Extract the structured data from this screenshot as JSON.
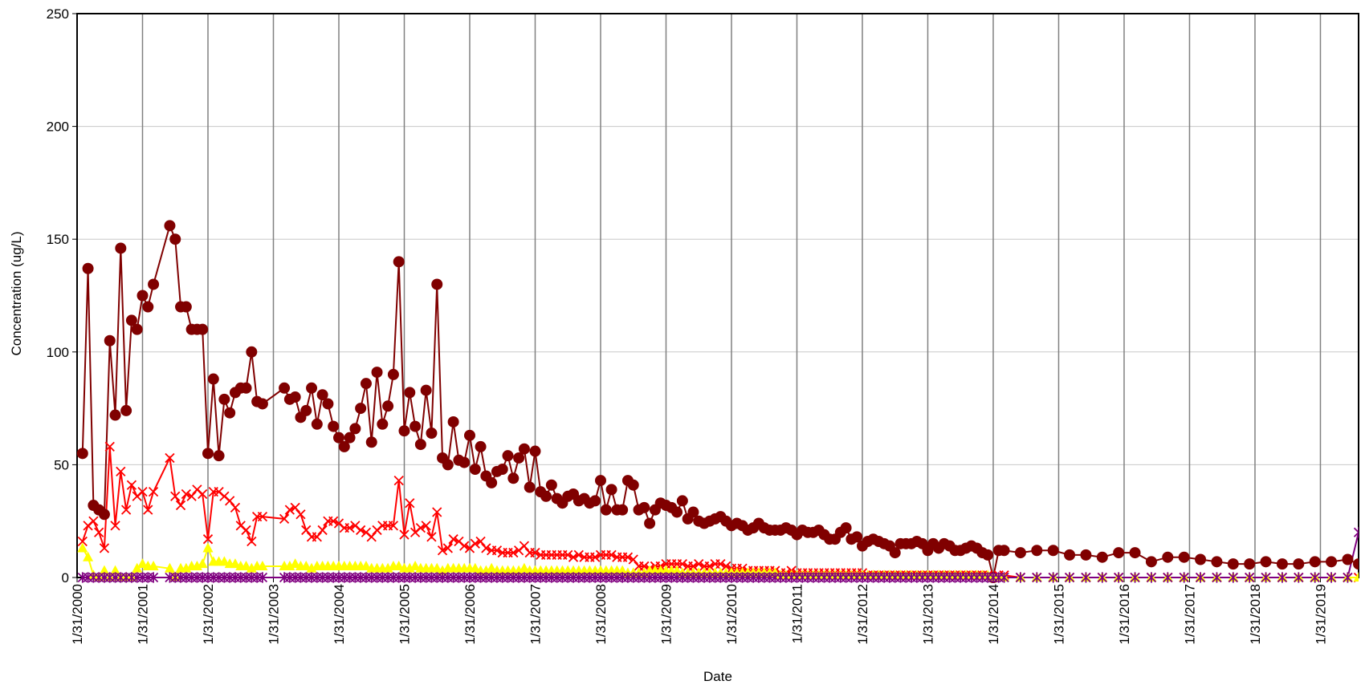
{
  "chart_data": {
    "type": "line",
    "x_label": "Date",
    "y_label": "Concentration (ug/L)",
    "xlim": [
      "2000-01",
      "2019-08"
    ],
    "xticks": [
      "1/31/2000",
      "1/31/2001",
      "1/31/2002",
      "1/31/2003",
      "1/31/2004",
      "1/31/2005",
      "1/31/2006",
      "1/31/2007",
      "1/31/2008",
      "1/31/2009",
      "1/31/2010",
      "1/31/2011",
      "1/31/2012",
      "1/31/2013",
      "1/31/2014",
      "1/31/2015",
      "1/31/2016",
      "1/31/2017",
      "1/31/2018",
      "1/31/2019"
    ],
    "ylim": [
      0,
      250
    ],
    "yticks": [
      0,
      50,
      100,
      150,
      200,
      250
    ],
    "grid": true,
    "x": [
      "2000-02",
      "2000-03",
      "2000-04",
      "2000-05",
      "2000-06",
      "2000-07",
      "2000-08",
      "2000-09",
      "2000-10",
      "2000-11",
      "2000-12",
      "2001-01",
      "2001-02",
      "2001-03",
      "2001-06",
      "2001-07",
      "2001-08",
      "2001-09",
      "2001-10",
      "2001-11",
      "2001-12",
      "2002-01",
      "2002-02",
      "2002-03",
      "2002-04",
      "2002-05",
      "2002-06",
      "2002-07",
      "2002-08",
      "2002-09",
      "2002-10",
      "2002-11",
      "2003-03",
      "2003-04",
      "2003-05",
      "2003-06",
      "2003-07",
      "2003-08",
      "2003-09",
      "2003-10",
      "2003-11",
      "2003-12",
      "2004-01",
      "2004-02",
      "2004-03",
      "2004-04",
      "2004-05",
      "2004-06",
      "2004-07",
      "2004-08",
      "2004-09",
      "2004-10",
      "2004-11",
      "2004-12",
      "2005-01",
      "2005-02",
      "2005-03",
      "2005-04",
      "2005-05",
      "2005-06",
      "2005-07",
      "2005-08",
      "2005-09",
      "2005-10",
      "2005-11",
      "2005-12",
      "2006-01",
      "2006-02",
      "2006-03",
      "2006-04",
      "2006-05",
      "2006-06",
      "2006-07",
      "2006-08",
      "2006-09",
      "2006-10",
      "2006-11",
      "2006-12",
      "2007-01",
      "2007-02",
      "2007-03",
      "2007-04",
      "2007-05",
      "2007-06",
      "2007-07",
      "2007-08",
      "2007-09",
      "2007-10",
      "2007-11",
      "2007-12",
      "2008-01",
      "2008-02",
      "2008-03",
      "2008-04",
      "2008-05",
      "2008-06",
      "2008-07",
      "2008-08",
      "2008-09",
      "2008-10",
      "2008-11",
      "2008-12",
      "2009-01",
      "2009-02",
      "2009-03",
      "2009-04",
      "2009-05",
      "2009-06",
      "2009-07",
      "2009-08",
      "2009-09",
      "2009-10",
      "2009-11",
      "2009-12",
      "2010-01",
      "2010-02",
      "2010-03",
      "2010-04",
      "2010-05",
      "2010-06",
      "2010-07",
      "2010-08",
      "2010-09",
      "2010-10",
      "2010-11",
      "2010-12",
      "2011-01",
      "2011-02",
      "2011-03",
      "2011-04",
      "2011-05",
      "2011-06",
      "2011-07",
      "2011-08",
      "2011-09",
      "2011-10",
      "2011-11",
      "2011-12",
      "2012-01",
      "2012-02",
      "2012-03",
      "2012-04",
      "2012-05",
      "2012-06",
      "2012-07",
      "2012-08",
      "2012-09",
      "2012-10",
      "2012-11",
      "2012-12",
      "2013-01",
      "2013-02",
      "2013-03",
      "2013-04",
      "2013-05",
      "2013-06",
      "2013-07",
      "2013-08",
      "2013-09",
      "2013-10",
      "2013-11",
      "2013-12",
      "2014-01",
      "2014-02",
      "2014-03",
      "2014-06",
      "2014-09",
      "2014-12",
      "2015-03",
      "2015-06",
      "2015-09",
      "2015-12",
      "2016-03",
      "2016-06",
      "2016-09",
      "2016-12",
      "2017-03",
      "2017-06",
      "2017-09",
      "2017-12",
      "2018-03",
      "2018-06",
      "2018-09",
      "2018-12",
      "2019-03",
      "2019-06",
      "2019-08"
    ],
    "series": [
      {
        "color": "#800000",
        "marker": "circle",
        "values": [
          55,
          137,
          32,
          30,
          28,
          105,
          72,
          146,
          74,
          114,
          110,
          125,
          120,
          130,
          156,
          150,
          120,
          120,
          110,
          110,
          110,
          55,
          88,
          54,
          79,
          73,
          82,
          84,
          84,
          100,
          78,
          77,
          84,
          79,
          80,
          71,
          74,
          84,
          68,
          81,
          77,
          67,
          62,
          58,
          62,
          66,
          75,
          86,
          60,
          91,
          68,
          76,
          90,
          140,
          65,
          82,
          67,
          59,
          83,
          64,
          130,
          53,
          50,
          69,
          52,
          51,
          63,
          48,
          58,
          45,
          42,
          47,
          48,
          54,
          44,
          53,
          57,
          40,
          56,
          38,
          36,
          41,
          35,
          33,
          36,
          37,
          34,
          35,
          33,
          34,
          43,
          30,
          39,
          30,
          30,
          43,
          41,
          30,
          31,
          24,
          30,
          33,
          32,
          31,
          29,
          34,
          26,
          29,
          25,
          24,
          25,
          26,
          27,
          25,
          23,
          24,
          23,
          21,
          22,
          24,
          22,
          21,
          21,
          21,
          22,
          21,
          19,
          21,
          20,
          20,
          21,
          19,
          17,
          17,
          20,
          22,
          17,
          18,
          14,
          16,
          17,
          16,
          15,
          14,
          11,
          15,
          15,
          15,
          16,
          15,
          12,
          15,
          13,
          15,
          14,
          12,
          12,
          13,
          14,
          13,
          11,
          10,
          0,
          12,
          12,
          11,
          12,
          12,
          10,
          10,
          9,
          11,
          11,
          7,
          9,
          9,
          8,
          7,
          6,
          6,
          7,
          6,
          6,
          7,
          7,
          8,
          6
        ]
      },
      {
        "color": "#ff0000",
        "marker": "x",
        "values": [
          16,
          23,
          25,
          20,
          13,
          58,
          23,
          47,
          30,
          41,
          36,
          38,
          30,
          38,
          53,
          36,
          32,
          37,
          36,
          39,
          37,
          17,
          38,
          38,
          36,
          34,
          31,
          23,
          21,
          16,
          27,
          27,
          26,
          30,
          31,
          28,
          21,
          18,
          18,
          21,
          25,
          25,
          24,
          22,
          22,
          23,
          21,
          20,
          18,
          21,
          23,
          23,
          23,
          43,
          19,
          33,
          20,
          22,
          23,
          18,
          29,
          12,
          13,
          17,
          16,
          14,
          13,
          15,
          16,
          13,
          12,
          12,
          11,
          11,
          11,
          12,
          14,
          11,
          11,
          10,
          10,
          10,
          10,
          10,
          10,
          9,
          10,
          9,
          9,
          9,
          10,
          10,
          10,
          9,
          9,
          9,
          8,
          5,
          5,
          4,
          5,
          5,
          6,
          6,
          6,
          6,
          5,
          5,
          6,
          5,
          5,
          6,
          6,
          5,
          4,
          4,
          4,
          3,
          3,
          3,
          3,
          3,
          3,
          2,
          2,
          3,
          2,
          2,
          2,
          2,
          2,
          2,
          2,
          2,
          2,
          2,
          2,
          2,
          2,
          1,
          1,
          1,
          1,
          1,
          1,
          1,
          1,
          1,
          1,
          1,
          1,
          1,
          1,
          1,
          1,
          1,
          1,
          1,
          1,
          1,
          1,
          1,
          0,
          1,
          1,
          0,
          0,
          0,
          0,
          0,
          0,
          0,
          0,
          0,
          0,
          0,
          0,
          0,
          0,
          0,
          0,
          0,
          0,
          0,
          0,
          0,
          0
        ]
      },
      {
        "color": "#ffff00",
        "marker": "triangle",
        "values": [
          13,
          9,
          1,
          0,
          3,
          0,
          3,
          0,
          0,
          0,
          4,
          6,
          5,
          5,
          4,
          0,
          4,
          4,
          5,
          5,
          6,
          13,
          7,
          7,
          7,
          6,
          6,
          5,
          5,
          4,
          5,
          5,
          5,
          5,
          6,
          5,
          5,
          4,
          5,
          5,
          5,
          5,
          5,
          5,
          5,
          5,
          5,
          5,
          4,
          4,
          4,
          4,
          5,
          5,
          4,
          4,
          5,
          4,
          4,
          4,
          4,
          3,
          4,
          4,
          4,
          4,
          4,
          4,
          3,
          3,
          4,
          3,
          3,
          3,
          3,
          3,
          4,
          3,
          3,
          3,
          3,
          3,
          3,
          3,
          3,
          3,
          3,
          3,
          3,
          3,
          3,
          3,
          3,
          3,
          3,
          2,
          2,
          2,
          2,
          3,
          3,
          3,
          3,
          3,
          3,
          2,
          2,
          2,
          2,
          2,
          2,
          2,
          2,
          2,
          2,
          2,
          2,
          2,
          2,
          2,
          2,
          2,
          2,
          1,
          1,
          1,
          1,
          1,
          1,
          1,
          1,
          1,
          1,
          1,
          1,
          1,
          1,
          1,
          1,
          1,
          1,
          1,
          1,
          1,
          1,
          1,
          1,
          1,
          1,
          1,
          1,
          1,
          1,
          1,
          1,
          1,
          1,
          1,
          1,
          1,
          1,
          1,
          0,
          0,
          0,
          0,
          0,
          0,
          0,
          0,
          0,
          0,
          0,
          0,
          0,
          0,
          0,
          0,
          0,
          0,
          0,
          0,
          0,
          0,
          0,
          0,
          0
        ]
      },
      {
        "color": "#800080",
        "marker": "star",
        "values": [
          0,
          0,
          0,
          0,
          0,
          0,
          0,
          0,
          0,
          0,
          0,
          0,
          0,
          0,
          0,
          0,
          0,
          0,
          0,
          0,
          0,
          0,
          0,
          0,
          0,
          0,
          0,
          0,
          0,
          0,
          0,
          0,
          0,
          0,
          0,
          0,
          0,
          0,
          0,
          0,
          0,
          0,
          0,
          0,
          0,
          0,
          0,
          0,
          0,
          0,
          0,
          0,
          0,
          0,
          0,
          0,
          0,
          0,
          0,
          0,
          0,
          0,
          0,
          0,
          0,
          0,
          0,
          0,
          0,
          0,
          0,
          0,
          0,
          0,
          0,
          0,
          0,
          0,
          0,
          0,
          0,
          0,
          0,
          0,
          0,
          0,
          0,
          0,
          0,
          0,
          0,
          0,
          0,
          0,
          0,
          0,
          0,
          0,
          0,
          0,
          0,
          0,
          0,
          0,
          0,
          0,
          0,
          0,
          0,
          0,
          0,
          0,
          0,
          0,
          0,
          0,
          0,
          0,
          0,
          0,
          0,
          0,
          0,
          0,
          0,
          0,
          0,
          0,
          0,
          0,
          0,
          0,
          0,
          0,
          0,
          0,
          0,
          0,
          0,
          0,
          0,
          0,
          0,
          0,
          0,
          0,
          0,
          0,
          0,
          0,
          0,
          0,
          0,
          0,
          0,
          0,
          0,
          0,
          0,
          0,
          0,
          0,
          0,
          0,
          0,
          0,
          0,
          0,
          0,
          0,
          0,
          0,
          0,
          0,
          0,
          0,
          0,
          0,
          0,
          0,
          0,
          0,
          0,
          0,
          0,
          0,
          20
        ]
      }
    ]
  }
}
